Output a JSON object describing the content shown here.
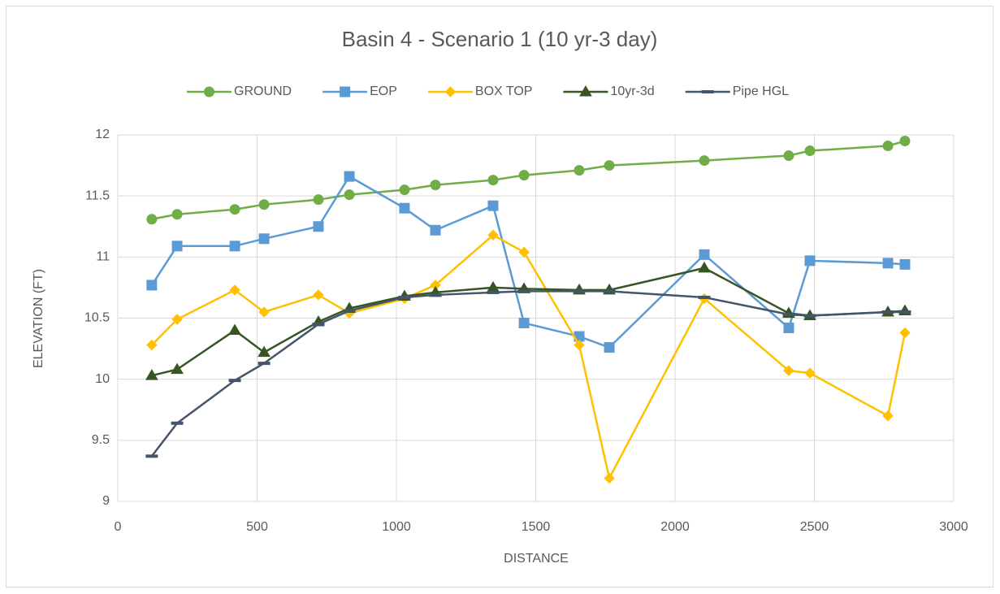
{
  "chart_data": {
    "type": "line",
    "title": "Basin 4 - Scenario 1 (10 yr-3 day)",
    "x_label": "DISTANCE",
    "y_label": "ELEVATION (FT)",
    "x": [
      122,
      213,
      420,
      525,
      720,
      831,
      1029,
      1140,
      1347,
      1458,
      1656,
      1764,
      2105,
      2408,
      2484,
      2764,
      2825
    ],
    "series": [
      {
        "name": "GROUND",
        "color": "#70ad47",
        "marker": "circle",
        "values": [
          11.31,
          11.35,
          11.39,
          11.43,
          11.47,
          11.51,
          11.55,
          11.59,
          11.63,
          11.67,
          11.71,
          11.75,
          11.79,
          11.83,
          11.87,
          11.91,
          11.95
        ]
      },
      {
        "name": "EOP",
        "color": "#5b9bd5",
        "marker": "square",
        "values": [
          10.77,
          11.09,
          11.09,
          11.15,
          11.25,
          11.66,
          11.4,
          11.22,
          11.42,
          10.46,
          10.35,
          10.26,
          11.02,
          10.42,
          10.97,
          10.95,
          10.94
        ]
      },
      {
        "name": "BOX TOP",
        "color": "#ffc000",
        "marker": "diamond",
        "values": [
          10.28,
          10.49,
          10.73,
          10.55,
          10.69,
          10.54,
          10.66,
          10.77,
          11.18,
          11.04,
          10.28,
          9.19,
          10.66,
          10.07,
          10.05,
          9.7,
          10.38
        ]
      },
      {
        "name": "10yr-3d",
        "color": "#375623",
        "marker": "triangle",
        "values": [
          10.03,
          10.08,
          10.4,
          10.22,
          10.47,
          10.58,
          10.68,
          10.71,
          10.75,
          10.74,
          10.73,
          10.73,
          10.91,
          10.54,
          10.52,
          10.55,
          10.56
        ]
      },
      {
        "name": "Pipe HGL",
        "color": "#44546a",
        "marker": "dash",
        "values": [
          9.37,
          9.64,
          9.99,
          10.13,
          10.45,
          10.56,
          10.67,
          10.69,
          10.71,
          10.72,
          10.72,
          10.72,
          10.67,
          10.53,
          10.52,
          10.55,
          10.55
        ]
      }
    ],
    "xlim": [
      0,
      3000
    ],
    "xticks": [
      0,
      500,
      1000,
      1500,
      2000,
      2500,
      3000
    ],
    "ylim": [
      9,
      12
    ],
    "yticks": [
      9,
      9.5,
      10,
      10.5,
      11,
      11.5,
      12
    ],
    "grid": true,
    "legend": "top"
  }
}
